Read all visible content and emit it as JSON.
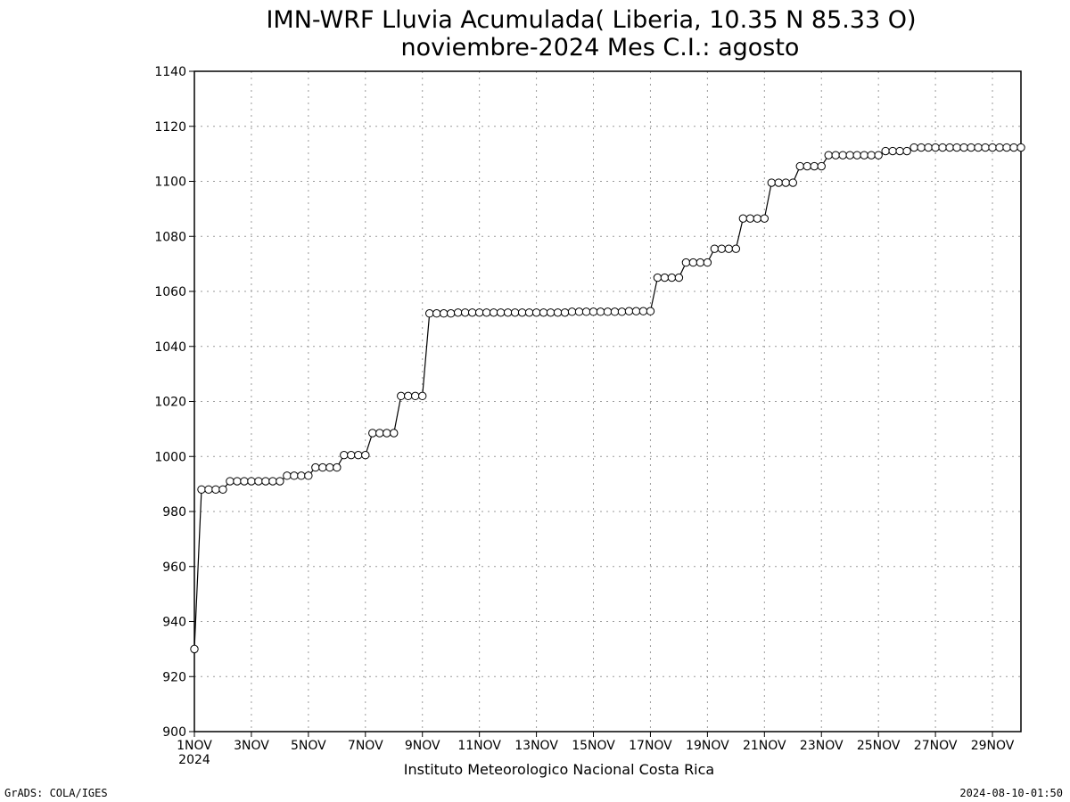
{
  "chart_data": {
    "type": "line",
    "title": "IMN-WRF  Lluvia Acumulada( Liberia, 10.35  N 85.33  O)",
    "subtitle": "noviembre-2024 Mes C.I.: agosto",
    "xlabel": "",
    "ylabel": "",
    "ylim": [
      900,
      1140
    ],
    "xlim": [
      "2024-11-01",
      "2024-11-30"
    ],
    "grid": true,
    "yticks": [
      900,
      920,
      940,
      960,
      980,
      1000,
      1020,
      1040,
      1060,
      1080,
      1100,
      1120,
      1140
    ],
    "xtick_labels": [
      "1NOV",
      "3NOV",
      "5NOV",
      "7NOV",
      "9NOV",
      "11NOV",
      "13NOV",
      "15NOV",
      "17NOV",
      "19NOV",
      "21NOV",
      "23NOV",
      "25NOV",
      "27NOV",
      "29NOV"
    ],
    "xtick_dates": [
      "2024-11-01",
      "2024-11-03",
      "2024-11-05",
      "2024-11-07",
      "2024-11-09",
      "2024-11-11",
      "2024-11-13",
      "2024-11-15",
      "2024-11-17",
      "2024-11-19",
      "2024-11-21",
      "2024-11-23",
      "2024-11-25",
      "2024-11-27",
      "2024-11-29"
    ],
    "year_label": "2024",
    "series": [
      {
        "x": [
          "2024-11-01 00:00",
          "2024-11-01 06:00",
          "2024-11-01 12:00",
          "2024-11-01 18:00",
          "2024-11-02 00:00",
          "2024-11-02 06:00",
          "2024-11-02 12:00",
          "2024-11-02 18:00",
          "2024-11-03 00:00",
          "2024-11-03 06:00",
          "2024-11-03 12:00",
          "2024-11-03 18:00",
          "2024-11-04 00:00",
          "2024-11-04 06:00",
          "2024-11-04 12:00",
          "2024-11-04 18:00",
          "2024-11-05 00:00",
          "2024-11-05 06:00",
          "2024-11-05 12:00",
          "2024-11-05 18:00",
          "2024-11-06 00:00",
          "2024-11-06 06:00",
          "2024-11-06 12:00",
          "2024-11-06 18:00",
          "2024-11-07 00:00",
          "2024-11-07 06:00",
          "2024-11-07 12:00",
          "2024-11-07 18:00",
          "2024-11-08 00:00",
          "2024-11-08 06:00",
          "2024-11-08 12:00",
          "2024-11-08 18:00",
          "2024-11-09 00:00",
          "2024-11-09 06:00",
          "2024-11-09 12:00",
          "2024-11-09 18:00",
          "2024-11-10 00:00",
          "2024-11-10 06:00",
          "2024-11-10 12:00",
          "2024-11-10 18:00",
          "2024-11-11 00:00",
          "2024-11-11 06:00",
          "2024-11-11 12:00",
          "2024-11-11 18:00",
          "2024-11-12 00:00",
          "2024-11-12 06:00",
          "2024-11-12 12:00",
          "2024-11-12 18:00",
          "2024-11-13 00:00",
          "2024-11-13 06:00",
          "2024-11-13 12:00",
          "2024-11-13 18:00",
          "2024-11-14 00:00",
          "2024-11-14 06:00",
          "2024-11-14 12:00",
          "2024-11-14 18:00",
          "2024-11-15 00:00",
          "2024-11-15 06:00",
          "2024-11-15 12:00",
          "2024-11-15 18:00",
          "2024-11-16 00:00",
          "2024-11-16 06:00",
          "2024-11-16 12:00",
          "2024-11-16 18:00",
          "2024-11-17 00:00",
          "2024-11-17 06:00",
          "2024-11-17 12:00",
          "2024-11-17 18:00",
          "2024-11-18 00:00",
          "2024-11-18 06:00",
          "2024-11-18 12:00",
          "2024-11-18 18:00",
          "2024-11-19 00:00",
          "2024-11-19 06:00",
          "2024-11-19 12:00",
          "2024-11-19 18:00",
          "2024-11-20 00:00",
          "2024-11-20 06:00",
          "2024-11-20 12:00",
          "2024-11-20 18:00",
          "2024-11-21 00:00",
          "2024-11-21 06:00",
          "2024-11-21 12:00",
          "2024-11-21 18:00",
          "2024-11-22 00:00",
          "2024-11-22 06:00",
          "2024-11-22 12:00",
          "2024-11-22 18:00",
          "2024-11-23 00:00",
          "2024-11-23 06:00",
          "2024-11-23 12:00",
          "2024-11-23 18:00",
          "2024-11-24 00:00",
          "2024-11-24 06:00",
          "2024-11-24 12:00",
          "2024-11-24 18:00",
          "2024-11-25 00:00",
          "2024-11-25 06:00",
          "2024-11-25 12:00",
          "2024-11-25 18:00",
          "2024-11-26 00:00",
          "2024-11-26 06:00",
          "2024-11-26 12:00",
          "2024-11-26 18:00",
          "2024-11-27 00:00",
          "2024-11-27 06:00",
          "2024-11-27 12:00",
          "2024-11-27 18:00",
          "2024-11-28 00:00",
          "2024-11-28 06:00",
          "2024-11-28 12:00",
          "2024-11-28 18:00",
          "2024-11-29 00:00",
          "2024-11-29 06:00",
          "2024-11-29 12:00",
          "2024-11-29 18:00",
          "2024-11-30 00:00"
        ],
        "values": [
          930,
          988,
          988,
          988,
          988,
          991,
          991,
          991,
          991,
          991,
          991,
          991,
          991,
          993,
          993,
          993,
          993,
          996,
          996,
          996,
          996,
          1000.5,
          1000.5,
          1000.5,
          1000.5,
          1008.5,
          1008.5,
          1008.5,
          1008.5,
          1022,
          1022,
          1022,
          1022,
          1052,
          1052,
          1052,
          1052,
          1052.3,
          1052.3,
          1052.3,
          1052.3,
          1052.3,
          1052.3,
          1052.3,
          1052.3,
          1052.3,
          1052.3,
          1052.3,
          1052.3,
          1052.3,
          1052.3,
          1052.3,
          1052.3,
          1052.6,
          1052.6,
          1052.6,
          1052.6,
          1052.6,
          1052.6,
          1052.6,
          1052.6,
          1052.8,
          1052.8,
          1052.8,
          1052.8,
          1065,
          1065,
          1065,
          1065,
          1070.5,
          1070.5,
          1070.5,
          1070.5,
          1075.5,
          1075.5,
          1075.5,
          1075.5,
          1086.5,
          1086.5,
          1086.5,
          1086.5,
          1099.5,
          1099.5,
          1099.5,
          1099.5,
          1105.5,
          1105.5,
          1105.5,
          1105.5,
          1109.5,
          1109.5,
          1109.5,
          1109.5,
          1109.5,
          1109.5,
          1109.5,
          1109.5,
          1111,
          1111,
          1111,
          1111,
          1112.3,
          1112.3,
          1112.3,
          1112.3,
          1112.3,
          1112.3,
          1112.3,
          1112.3,
          1112.3,
          1112.3,
          1112.3,
          1112.3,
          1112.3,
          1112.3,
          1112.3,
          1112.3
        ]
      }
    ],
    "line_color": "#000000",
    "marker": "open-circle"
  },
  "footer": {
    "institution": "Instituto Meteorologico Nacional Costa Rica",
    "software": "GrADS: COLA/IGES",
    "timestamp": "2024-08-10-01:50"
  }
}
